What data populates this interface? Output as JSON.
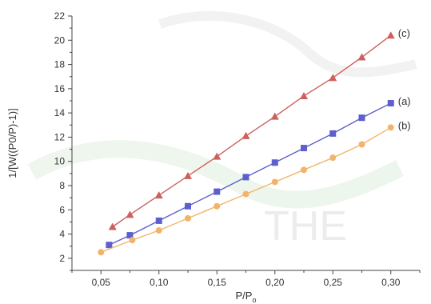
{
  "chart_data": {
    "type": "line",
    "xlabel": "P/P",
    "xlabel_sub": "o",
    "ylabel": "1/[W((P0/P)-1)]",
    "xlim": [
      0.025,
      0.325
    ],
    "ylim": [
      1,
      22
    ],
    "x_ticks": [
      "0,05",
      "0,10",
      "0,15",
      "0,20",
      "0,25",
      "0,30"
    ],
    "x_tick_values": [
      0.05,
      0.1,
      0.15,
      0.2,
      0.25,
      0.3
    ],
    "y_ticks": [
      "2",
      "4",
      "6",
      "8",
      "10",
      "12",
      "14",
      "16",
      "18",
      "20",
      "22"
    ],
    "y_tick_values": [
      2,
      4,
      6,
      8,
      10,
      12,
      14,
      16,
      18,
      20,
      22
    ],
    "grid": false,
    "series": [
      {
        "name": "(c)",
        "marker": "triangle",
        "color": "#cd5f5c",
        "x": [
          0.06,
          0.075,
          0.1,
          0.125,
          0.15,
          0.175,
          0.2,
          0.225,
          0.25,
          0.275,
          0.3
        ],
        "y": [
          4.6,
          5.6,
          7.2,
          8.8,
          10.4,
          12.1,
          13.7,
          15.4,
          16.9,
          18.6,
          20.4
        ]
      },
      {
        "name": "(a)",
        "marker": "square",
        "color": "#5c5fcd",
        "x": [
          0.057,
          0.075,
          0.1,
          0.125,
          0.15,
          0.175,
          0.2,
          0.225,
          0.25,
          0.275,
          0.3
        ],
        "y": [
          3.1,
          3.9,
          5.1,
          6.3,
          7.5,
          8.7,
          9.9,
          11.1,
          12.3,
          13.6,
          14.8
        ]
      },
      {
        "name": "(b)",
        "marker": "circle",
        "color": "#f2b46a",
        "x": [
          0.05,
          0.077,
          0.1,
          0.125,
          0.15,
          0.175,
          0.2,
          0.225,
          0.25,
          0.275,
          0.3
        ],
        "y": [
          2.5,
          3.5,
          4.3,
          5.3,
          6.3,
          7.3,
          8.3,
          9.3,
          10.3,
          11.4,
          12.8
        ]
      }
    ]
  }
}
